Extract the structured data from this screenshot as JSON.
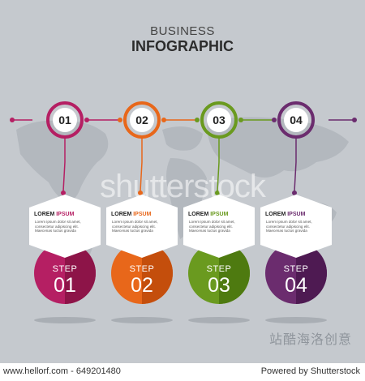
{
  "header": {
    "line1": "BUSINESS",
    "line2": "INFOGRAPHIC"
  },
  "watermark": {
    "main": "shutterstock",
    "cn": "站酷海洛创意"
  },
  "colors": {
    "background": "#c5c9ce",
    "timeline": "#8a5d8a"
  },
  "steps": [
    {
      "num": "01",
      "color": "#b51f63",
      "dark": "#8d1448",
      "card_title_a": "LOREM ",
      "card_title_b": "IPSUM",
      "body": "Lorem ipsum dolor sit amet, consectetur adipiscing elit. Maecenas luctus gravida",
      "step_label": "STEP",
      "step_num": "01"
    },
    {
      "num": "02",
      "color": "#e8671a",
      "dark": "#c44e0c",
      "card_title_a": "LOREM ",
      "card_title_b": "IPSUM",
      "body": "Lorem ipsum dolor sit amet, consectetur adipiscing elit. Maecenas luctus gravida",
      "step_label": "STEP",
      "step_num": "02"
    },
    {
      "num": "03",
      "color": "#6a9a1f",
      "dark": "#4e7a10",
      "card_title_a": "LOREM ",
      "card_title_b": "IPSUM",
      "body": "Lorem ipsum dolor sit amet, consectetur adipiscing elit. Maecenas luctus gravida",
      "step_label": "STEP",
      "step_num": "03"
    },
    {
      "num": "04",
      "color": "#6b2c6e",
      "dark": "#4e1a52",
      "card_title_a": "LOREM ",
      "card_title_b": "IPSUM",
      "body": "Lorem ipsum dolor sit amet, consectetur adipiscing elit. Maecenas luctus gravida",
      "step_label": "STEP",
      "step_num": "04"
    }
  ],
  "footer": {
    "left": "www.hellorf.com - 649201480",
    "right": "Powered by Shutterstock"
  }
}
